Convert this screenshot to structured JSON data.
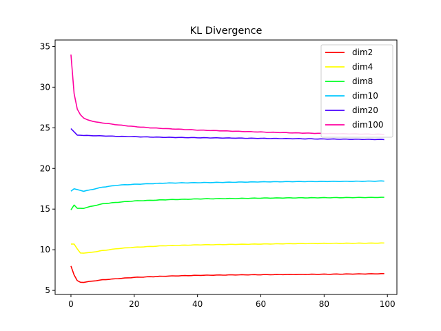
{
  "chart_data": {
    "type": "line",
    "title": "KL Divergence",
    "xlabel": "",
    "ylabel": "",
    "xlim": [
      -5,
      103
    ],
    "ylim": [
      4.5,
      35.8
    ],
    "xticks": [
      0,
      20,
      40,
      60,
      80,
      100
    ],
    "yticks": [
      5,
      10,
      15,
      20,
      25,
      30,
      35
    ],
    "grid": false,
    "legend_position": "top-right",
    "series": [
      {
        "name": "dim2",
        "color": "#ff0000",
        "keypoints": [
          [
            0,
            8.0
          ],
          [
            1,
            6.9
          ],
          [
            2,
            6.2
          ],
          [
            3,
            6.0
          ],
          [
            4,
            6.0
          ],
          [
            6,
            6.1
          ],
          [
            10,
            6.3
          ],
          [
            15,
            6.45
          ],
          [
            20,
            6.6
          ],
          [
            30,
            6.75
          ],
          [
            40,
            6.85
          ],
          [
            50,
            6.9
          ],
          [
            60,
            6.93
          ],
          [
            70,
            6.96
          ],
          [
            80,
            6.99
          ],
          [
            90,
            7.02
          ],
          [
            99,
            7.05
          ]
        ]
      },
      {
        "name": "dim4",
        "color": "#ffff00",
        "keypoints": [
          [
            0,
            10.7
          ],
          [
            1,
            10.7
          ],
          [
            2,
            10.1
          ],
          [
            3,
            9.6
          ],
          [
            4,
            9.6
          ],
          [
            6,
            9.65
          ],
          [
            10,
            9.9
          ],
          [
            15,
            10.15
          ],
          [
            20,
            10.3
          ],
          [
            30,
            10.5
          ],
          [
            40,
            10.6
          ],
          [
            50,
            10.65
          ],
          [
            60,
            10.7
          ],
          [
            70,
            10.75
          ],
          [
            80,
            10.78
          ],
          [
            90,
            10.8
          ],
          [
            99,
            10.82
          ]
        ]
      },
      {
        "name": "dim8",
        "color": "#00ff24",
        "keypoints": [
          [
            0,
            14.9
          ],
          [
            1,
            15.5
          ],
          [
            2,
            15.1
          ],
          [
            4,
            15.1
          ],
          [
            6,
            15.3
          ],
          [
            10,
            15.65
          ],
          [
            15,
            15.85
          ],
          [
            20,
            16.0
          ],
          [
            30,
            16.15
          ],
          [
            40,
            16.25
          ],
          [
            50,
            16.3
          ],
          [
            60,
            16.35
          ],
          [
            70,
            16.38
          ],
          [
            80,
            16.4
          ],
          [
            90,
            16.42
          ],
          [
            99,
            16.44
          ]
        ]
      },
      {
        "name": "dim10",
        "color": "#00c8ff",
        "keypoints": [
          [
            0,
            17.2
          ],
          [
            1,
            17.5
          ],
          [
            2,
            17.4
          ],
          [
            4,
            17.2
          ],
          [
            6,
            17.35
          ],
          [
            10,
            17.7
          ],
          [
            15,
            17.95
          ],
          [
            20,
            18.05
          ],
          [
            30,
            18.2
          ],
          [
            40,
            18.25
          ],
          [
            50,
            18.3
          ],
          [
            60,
            18.35
          ],
          [
            70,
            18.38
          ],
          [
            80,
            18.4
          ],
          [
            90,
            18.42
          ],
          [
            99,
            18.45
          ]
        ]
      },
      {
        "name": "dim20",
        "color": "#4800ff",
        "keypoints": [
          [
            0,
            24.9
          ],
          [
            1,
            24.5
          ],
          [
            2,
            24.1
          ],
          [
            5,
            24.05
          ],
          [
            10,
            24.0
          ],
          [
            20,
            23.9
          ],
          [
            30,
            23.83
          ],
          [
            40,
            23.78
          ],
          [
            50,
            23.74
          ],
          [
            60,
            23.7
          ],
          [
            70,
            23.66
          ],
          [
            80,
            23.62
          ],
          [
            90,
            23.59
          ],
          [
            99,
            23.56
          ]
        ]
      },
      {
        "name": "dim100",
        "color": "#ff00a0",
        "keypoints": [
          [
            0,
            34.0
          ],
          [
            0.5,
            31.5
          ],
          [
            1,
            29.2
          ],
          [
            2,
            27.3
          ],
          [
            3,
            26.6
          ],
          [
            4,
            26.2
          ],
          [
            5,
            26.0
          ],
          [
            6,
            25.9
          ],
          [
            8,
            25.7
          ],
          [
            10,
            25.6
          ],
          [
            15,
            25.35
          ],
          [
            20,
            25.15
          ],
          [
            25,
            25.0
          ],
          [
            30,
            24.9
          ],
          [
            40,
            24.72
          ],
          [
            50,
            24.6
          ],
          [
            60,
            24.48
          ],
          [
            70,
            24.38
          ],
          [
            80,
            24.3
          ],
          [
            90,
            24.24
          ],
          [
            99,
            24.2
          ]
        ]
      }
    ]
  }
}
